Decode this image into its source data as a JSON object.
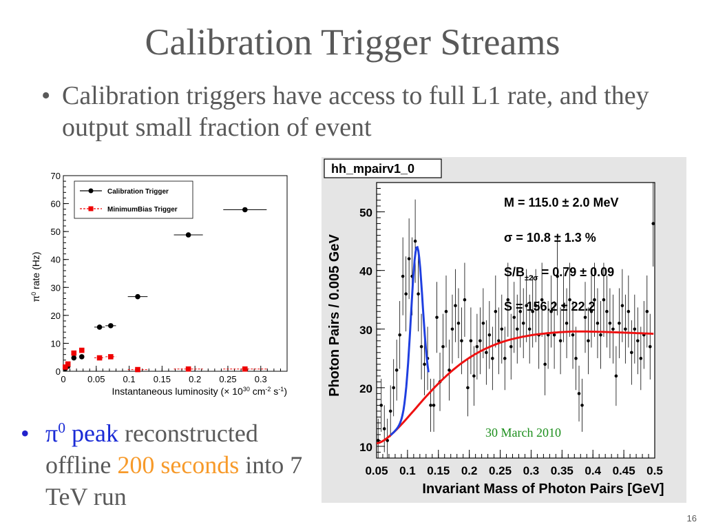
{
  "slide": {
    "title": "Calibration Trigger Streams",
    "bullet1": "Calibration triggers have access to full L1 rate, and they output small fraction of event",
    "bullet2": {
      "pi0": "π",
      "pi0_sup": "0",
      "peak": " peak",
      "reconstructed": " reconstructed offline ",
      "seconds": "200 seconds",
      "rest": " into 7 TeV run"
    },
    "page_number": "16"
  },
  "colors": {
    "text": "#595959",
    "blue": "#1a2bd6",
    "orange": "#f79a2a",
    "red_marker": "#ee0000",
    "fit_blue": "#1f3fe0",
    "fit_red": "#ee1111",
    "date_green": "#1b8e1b"
  },
  "chart_data": [
    {
      "type": "scatter",
      "ylabel_prefix": "π",
      "ylabel_sup": "0",
      "ylabel_suffix": " rate (Hz)",
      "xlabel_main": "Instantaneous luminosity (× 10",
      "xlabel_exp1": "30",
      "xlabel_mid": " cm",
      "xlabel_exp2": "-2",
      "xlabel_mid2": " s",
      "xlabel_exp3": "-1",
      "xlabel_end": ")",
      "xlim": [
        0,
        0.34
      ],
      "ylim": [
        0,
        70
      ],
      "xticks": [
        "0",
        "0.05",
        "0.1",
        "0.15",
        "0.2",
        "0.25",
        "0.3"
      ],
      "xtick_values": [
        0,
        0.05,
        0.1,
        0.15,
        0.2,
        0.25,
        0.3
      ],
      "yticks": [
        "0",
        "10",
        "20",
        "30",
        "40",
        "50",
        "60",
        "70"
      ],
      "ytick_values": [
        0,
        10,
        20,
        30,
        40,
        50,
        60,
        70
      ],
      "legend_position": "top-left",
      "series": [
        {
          "name": "Calibration Trigger",
          "color": "#000000",
          "marker": "circle",
          "points": [
            {
              "x": 0.003,
              "y": 1.0,
              "xerr": 0.002
            },
            {
              "x": 0.007,
              "y": 1.8,
              "xerr": 0.002
            },
            {
              "x": 0.016,
              "y": 4.8,
              "xerr": 0.003
            },
            {
              "x": 0.028,
              "y": 5.2,
              "xerr": 0.003
            },
            {
              "x": 0.055,
              "y": 15.8,
              "xerr": 0.008
            },
            {
              "x": 0.072,
              "y": 16.3,
              "xerr": 0.008
            },
            {
              "x": 0.113,
              "y": 26.7,
              "xerr": 0.015
            },
            {
              "x": 0.19,
              "y": 48.8,
              "xerr": 0.022
            },
            {
              "x": 0.276,
              "y": 57.8,
              "xerr": 0.033
            }
          ]
        },
        {
          "name": "MinimumBias Trigger",
          "color": "#ee0000",
          "marker": "square",
          "points": [
            {
              "x": 0.003,
              "y": 1.5,
              "xerr": 0.002
            },
            {
              "x": 0.007,
              "y": 2.6,
              "xerr": 0.002
            },
            {
              "x": 0.016,
              "y": 6.5,
              "xerr": 0.003
            },
            {
              "x": 0.028,
              "y": 7.5,
              "xerr": 0.003
            },
            {
              "x": 0.055,
              "y": 4.8,
              "xerr": 0.008
            },
            {
              "x": 0.072,
              "y": 5.2,
              "xerr": 0.008
            },
            {
              "x": 0.113,
              "y": 0.6,
              "xerr": 0.015
            },
            {
              "x": 0.19,
              "y": 0.8,
              "xerr": 0.022
            },
            {
              "x": 0.276,
              "y": 0.8,
              "xerr": 0.033
            }
          ]
        }
      ]
    },
    {
      "type": "scatter",
      "hist_title": "hh_mpairv1_0",
      "xlabel": "Invariant Mass of Photon Pairs [GeV]",
      "ylabel": "Photon Pairs / 0.005 GeV",
      "xlim": [
        0.05,
        0.5
      ],
      "ylim": [
        8,
        55
      ],
      "xticks": [
        "0.05",
        "0.1",
        "0.15",
        "0.2",
        "0.25",
        "0.3",
        "0.35",
        "0.4",
        "0.45",
        "0.5"
      ],
      "xtick_values": [
        0.05,
        0.1,
        0.15,
        0.2,
        0.25,
        0.3,
        0.35,
        0.4,
        0.45,
        0.5
      ],
      "yticks": [
        "10",
        "20",
        "30",
        "40",
        "50"
      ],
      "ytick_values": [
        10,
        20,
        30,
        40,
        50
      ],
      "stats": {
        "mass": "M = 115.0 ± 2.0 MeV",
        "sigma": "σ = 10.8 ± 1.3 %",
        "sb_prefix": "S/B",
        "sb_sub": "±2σ",
        "sb_value": " = 0.79 ± 0.09",
        "signal": "S = 156.2 ± 22.2"
      },
      "date_label": "30 March 2010",
      "points": [
        {
          "x": 0.0525,
          "y": 11
        },
        {
          "x": 0.0575,
          "y": 17
        },
        {
          "x": 0.0625,
          "y": 13
        },
        {
          "x": 0.0675,
          "y": 11
        },
        {
          "x": 0.0725,
          "y": 16
        },
        {
          "x": 0.0775,
          "y": 20
        },
        {
          "x": 0.0825,
          "y": 23
        },
        {
          "x": 0.0875,
          "y": 29
        },
        {
          "x": 0.0925,
          "y": 39
        },
        {
          "x": 0.0975,
          "y": 36
        },
        {
          "x": 0.1025,
          "y": 42
        },
        {
          "x": 0.1075,
          "y": 39
        },
        {
          "x": 0.1125,
          "y": 45
        },
        {
          "x": 0.1175,
          "y": 36
        },
        {
          "x": 0.1225,
          "y": 27
        },
        {
          "x": 0.1275,
          "y": 24
        },
        {
          "x": 0.1325,
          "y": 25
        },
        {
          "x": 0.1375,
          "y": 17
        },
        {
          "x": 0.1425,
          "y": 17
        },
        {
          "x": 0.1475,
          "y": 32
        },
        {
          "x": 0.1525,
          "y": 21
        },
        {
          "x": 0.1575,
          "y": 27
        },
        {
          "x": 0.1625,
          "y": 33
        },
        {
          "x": 0.1675,
          "y": 23
        },
        {
          "x": 0.1725,
          "y": 30
        },
        {
          "x": 0.1775,
          "y": 34
        },
        {
          "x": 0.1825,
          "y": 31
        },
        {
          "x": 0.1875,
          "y": 28
        },
        {
          "x": 0.1925,
          "y": 35
        },
        {
          "x": 0.1975,
          "y": 20
        },
        {
          "x": 0.2025,
          "y": 28
        },
        {
          "x": 0.2075,
          "y": 22
        },
        {
          "x": 0.2125,
          "y": 27
        },
        {
          "x": 0.2175,
          "y": 28
        },
        {
          "x": 0.2225,
          "y": 31
        },
        {
          "x": 0.2275,
          "y": 26
        },
        {
          "x": 0.2325,
          "y": 29
        },
        {
          "x": 0.2375,
          "y": 25
        },
        {
          "x": 0.2425,
          "y": 33
        },
        {
          "x": 0.2475,
          "y": 28
        },
        {
          "x": 0.2525,
          "y": 30
        },
        {
          "x": 0.2575,
          "y": 25
        },
        {
          "x": 0.2625,
          "y": 35
        },
        {
          "x": 0.2675,
          "y": 27
        },
        {
          "x": 0.2725,
          "y": 32
        },
        {
          "x": 0.2775,
          "y": 30
        },
        {
          "x": 0.2825,
          "y": 33
        },
        {
          "x": 0.2875,
          "y": 31
        },
        {
          "x": 0.2925,
          "y": 34
        },
        {
          "x": 0.2975,
          "y": 30
        },
        {
          "x": 0.3025,
          "y": 33
        },
        {
          "x": 0.3075,
          "y": 34
        },
        {
          "x": 0.3125,
          "y": 29
        },
        {
          "x": 0.3175,
          "y": 35
        },
        {
          "x": 0.3225,
          "y": 24
        },
        {
          "x": 0.3275,
          "y": 29
        },
        {
          "x": 0.3325,
          "y": 33
        },
        {
          "x": 0.3375,
          "y": 29
        },
        {
          "x": 0.3425,
          "y": 39
        },
        {
          "x": 0.3475,
          "y": 28
        },
        {
          "x": 0.3525,
          "y": 34
        },
        {
          "x": 0.3575,
          "y": 31
        },
        {
          "x": 0.3625,
          "y": 35
        },
        {
          "x": 0.3675,
          "y": 29
        },
        {
          "x": 0.3725,
          "y": 25
        },
        {
          "x": 0.3775,
          "y": 19
        },
        {
          "x": 0.3825,
          "y": 17
        },
        {
          "x": 0.3875,
          "y": 32
        },
        {
          "x": 0.3925,
          "y": 28
        },
        {
          "x": 0.3975,
          "y": 33
        },
        {
          "x": 0.4025,
          "y": 35
        },
        {
          "x": 0.4075,
          "y": 31
        },
        {
          "x": 0.4125,
          "y": 29
        },
        {
          "x": 0.4175,
          "y": 35
        },
        {
          "x": 0.4225,
          "y": 33
        },
        {
          "x": 0.4275,
          "y": 31
        },
        {
          "x": 0.4325,
          "y": 30
        },
        {
          "x": 0.4375,
          "y": 22
        },
        {
          "x": 0.4425,
          "y": 31
        },
        {
          "x": 0.4475,
          "y": 34
        },
        {
          "x": 0.4525,
          "y": 30
        },
        {
          "x": 0.4575,
          "y": 33
        },
        {
          "x": 0.4625,
          "y": 26
        },
        {
          "x": 0.4675,
          "y": 30
        },
        {
          "x": 0.4725,
          "y": 28
        },
        {
          "x": 0.4775,
          "y": 25
        },
        {
          "x": 0.4825,
          "y": 29
        },
        {
          "x": 0.4875,
          "y": 33
        },
        {
          "x": 0.4925,
          "y": 27
        },
        {
          "x": 0.4975,
          "y": 48
        }
      ],
      "error_size": 5,
      "fit_signal": {
        "color": "#1f3fe0",
        "peak_x": 0.115,
        "peak_y": 44,
        "xrange": [
          0.0725,
          0.135
        ]
      },
      "fit_background": {
        "color": "#ee1111",
        "xrange": [
          0.05,
          0.5
        ]
      }
    }
  ]
}
